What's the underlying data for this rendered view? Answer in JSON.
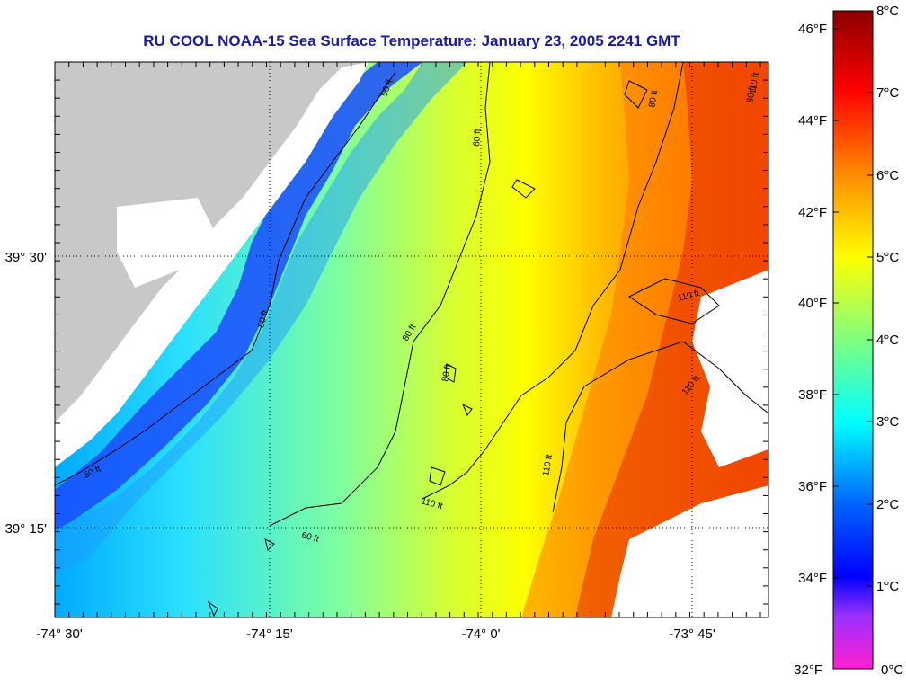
{
  "title": "RU COOL  NOAA-15  Sea Surface Temperature:  January 23, 2005 2241 GMT",
  "map": {
    "lon_ticks": [
      "-74° 30'",
      "-74° 15'",
      "-74° 0'",
      "-73° 45'"
    ],
    "lat_ticks": [
      "39° 30'",
      "39° 15'"
    ],
    "land_color": "#c8c8c8",
    "nodata_color": "#ffffff",
    "contour_labels": [
      "50 ft",
      "50 ft",
      "50 ft",
      "60 ft",
      "60 ft",
      "80 ft",
      "80 ft",
      "80 ft",
      "80 ft",
      "110 ft",
      "110 ft",
      "110 ft",
      "110 ft",
      "110 ft"
    ]
  },
  "colorbar": {
    "fahrenheit_labels": [
      "46°F",
      "44°F",
      "42°F",
      "40°F",
      "38°F",
      "36°F",
      "34°F",
      "32°F"
    ],
    "celsius_labels": [
      "8°C",
      "7°C",
      "6°C",
      "5°C",
      "4°C",
      "3°C",
      "2°C",
      "1°C",
      "0°C"
    ],
    "colors_top_to_bottom": [
      "#8b0000",
      "#ff0000",
      "#ff8c00",
      "#ffff00",
      "#7fff7f",
      "#00ffff",
      "#0064ff",
      "#0000ff",
      "#9b30ff",
      "#ff1fd0"
    ]
  }
}
